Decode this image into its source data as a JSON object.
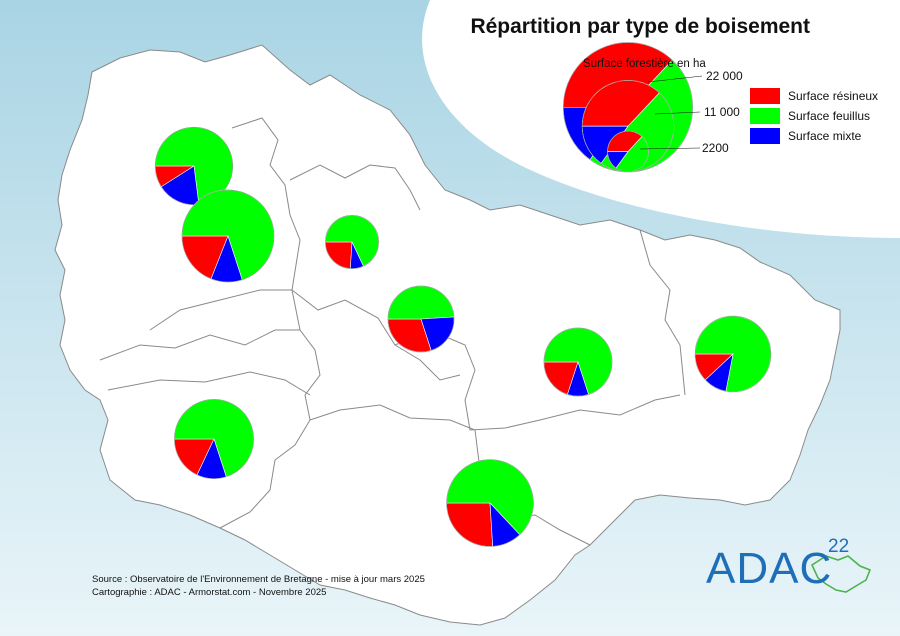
{
  "title": "Répartition par type de boisement",
  "legend": {
    "size_caption": "Surface forestière en ha",
    "size_labels": [
      "22 000",
      "11 000",
      "2200"
    ],
    "items": [
      {
        "label": "Surface résineux",
        "color": "#ff0000"
      },
      {
        "label": "Surface feuillus",
        "color": "#00ff00"
      },
      {
        "label": "Surface mixte",
        "color": "#0000ff"
      }
    ]
  },
  "source_lines": [
    "Source : Observatoire de l'Environnement de Bretagne - mise à jour mars 2025",
    "Cartographie : ADAC - Armorstat.com - Novembre 2025"
  ],
  "logo": {
    "text": "ADAC",
    "superscript": "22",
    "color": "#1f6fb8"
  },
  "colors": {
    "sea": "#bfe0eb",
    "land": "#ffffff",
    "border": "#8a8a8a"
  },
  "chart_data": {
    "type": "pie",
    "series_names": [
      "Surface résineux",
      "Surface feuillus",
      "Surface mixte"
    ],
    "pies": [
      {
        "name": "pie-1",
        "total": 11000,
        "values": [
          9,
          73,
          18
        ]
      },
      {
        "name": "pie-2",
        "total": 15500,
        "values": [
          19,
          70,
          11
        ]
      },
      {
        "name": "pie-3",
        "total": 5200,
        "values": [
          24,
          68,
          8
        ]
      },
      {
        "name": "pie-4",
        "total": 8000,
        "values": [
          30,
          49,
          21
        ]
      },
      {
        "name": "pie-5",
        "total": 8500,
        "values": [
          20,
          70,
          10
        ]
      },
      {
        "name": "pie-6",
        "total": 10500,
        "values": [
          12,
          78,
          10
        ]
      },
      {
        "name": "pie-7",
        "total": 11500,
        "values": [
          18,
          70,
          12
        ]
      },
      {
        "name": "pie-8",
        "total": 13800,
        "values": [
          26,
          63,
          11
        ]
      }
    ],
    "legend_pies": [
      {
        "total": 22000,
        "values": [
          37,
          48,
          15
        ]
      },
      {
        "total": 11000,
        "values": [
          37,
          48,
          15
        ]
      },
      {
        "total": 2200,
        "values": [
          37,
          48,
          15
        ]
      }
    ]
  }
}
